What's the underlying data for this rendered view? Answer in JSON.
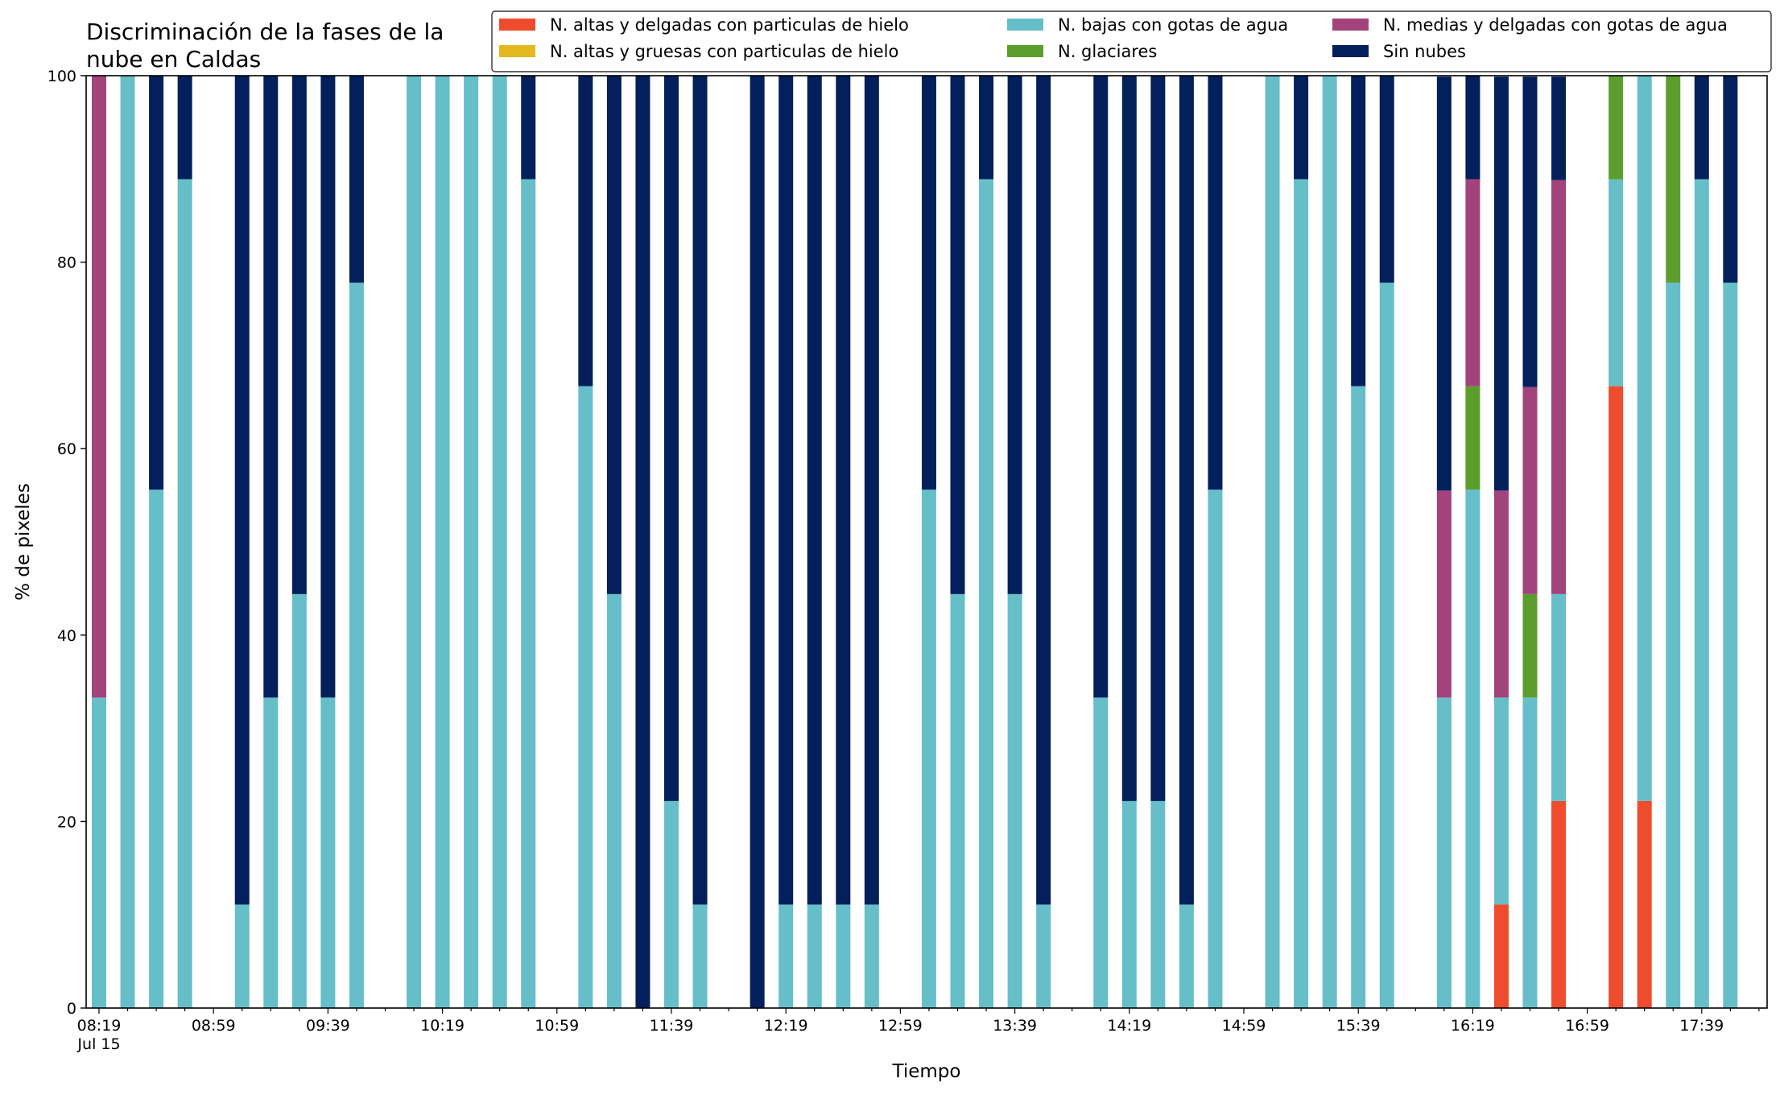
{
  "chart_data": {
    "type": "bar",
    "stacked": true,
    "title": "Discriminación de la fases de la\nnube en Caldas",
    "xlabel": "Tiempo",
    "ylabel": "% de pixeles",
    "ylim": [
      0,
      100
    ],
    "yticks": [
      0,
      20,
      40,
      60,
      80,
      100
    ],
    "grid": false,
    "legend_position": "top-right",
    "legend_columns": 3,
    "x_tick_labels": [
      {
        "slot": 0,
        "label": "08:19",
        "sublabel": "Jul 15"
      },
      {
        "slot": 4,
        "label": "08:59"
      },
      {
        "slot": 8,
        "label": "09:39"
      },
      {
        "slot": 12,
        "label": "10:19"
      },
      {
        "slot": 16,
        "label": "10:59"
      },
      {
        "slot": 20,
        "label": "11:39"
      },
      {
        "slot": 24,
        "label": "12:19"
      },
      {
        "slot": 28,
        "label": "12:59"
      },
      {
        "slot": 32,
        "label": "13:39"
      },
      {
        "slot": 36,
        "label": "14:19"
      },
      {
        "slot": 40,
        "label": "14:59"
      },
      {
        "slot": 44,
        "label": "15:39"
      },
      {
        "slot": 48,
        "label": "16:19"
      },
      {
        "slot": 52,
        "label": "16:59"
      },
      {
        "slot": 56,
        "label": "17:39"
      }
    ],
    "x_slot_count": 59,
    "series": [
      {
        "name": "N. altas y delgadas con particulas de hielo",
        "color": "#EE4C2C"
      },
      {
        "name": "N. altas y gruesas con particulas de hielo",
        "color": "#E3B91E"
      },
      {
        "name": "N. bajas con gotas de agua",
        "color": "#66BFC8"
      },
      {
        "name": "N. glaciares",
        "color": "#5B9E2E"
      },
      {
        "name": "N. medias y delgadas con gotas de agua",
        "color": "#A2437B"
      },
      {
        "name": "Sin nubes",
        "color": "#031F5C"
      }
    ],
    "bars": [
      {
        "slot": 0,
        "values": [
          0,
          0,
          33.3,
          0,
          66.7,
          0
        ]
      },
      {
        "slot": 1,
        "values": [
          0,
          0,
          100,
          0,
          0,
          0
        ]
      },
      {
        "slot": 2,
        "values": [
          0,
          0,
          55.6,
          0,
          0,
          44.4
        ]
      },
      {
        "slot": 3,
        "values": [
          0,
          0,
          88.9,
          0,
          0,
          11.1
        ]
      },
      {
        "slot": 5,
        "values": [
          0,
          0,
          11.1,
          0,
          0,
          88.9
        ]
      },
      {
        "slot": 6,
        "values": [
          0,
          0,
          33.3,
          0,
          0,
          66.7
        ]
      },
      {
        "slot": 7,
        "values": [
          0,
          0,
          44.4,
          0,
          0,
          55.6
        ]
      },
      {
        "slot": 8,
        "values": [
          0,
          0,
          33.3,
          0,
          0,
          66.7
        ]
      },
      {
        "slot": 9,
        "values": [
          0,
          0,
          77.8,
          0,
          0,
          22.2
        ]
      },
      {
        "slot": 11,
        "values": [
          0,
          0,
          100,
          0,
          0,
          0
        ]
      },
      {
        "slot": 12,
        "values": [
          0,
          0,
          100,
          0,
          0,
          0
        ]
      },
      {
        "slot": 13,
        "values": [
          0,
          0,
          100,
          0,
          0,
          0
        ]
      },
      {
        "slot": 14,
        "values": [
          0,
          0,
          100,
          0,
          0,
          0
        ]
      },
      {
        "slot": 15,
        "values": [
          0,
          0,
          88.9,
          0,
          0,
          11.1
        ]
      },
      {
        "slot": 17,
        "values": [
          0,
          0,
          66.7,
          0,
          0,
          33.3
        ]
      },
      {
        "slot": 18,
        "values": [
          0,
          0,
          44.4,
          0,
          0,
          55.6
        ]
      },
      {
        "slot": 19,
        "values": [
          0,
          0,
          0,
          0,
          0,
          100
        ]
      },
      {
        "slot": 20,
        "values": [
          0,
          0,
          22.2,
          0,
          0,
          77.8
        ]
      },
      {
        "slot": 21,
        "values": [
          0,
          0,
          11.1,
          0,
          0,
          88.9
        ]
      },
      {
        "slot": 23,
        "values": [
          0,
          0,
          0,
          0,
          0,
          100
        ]
      },
      {
        "slot": 24,
        "values": [
          0,
          0,
          11.1,
          0,
          0,
          88.9
        ]
      },
      {
        "slot": 25,
        "values": [
          0,
          0,
          11.1,
          0,
          0,
          88.9
        ]
      },
      {
        "slot": 26,
        "values": [
          0,
          0,
          11.1,
          0,
          0,
          88.9
        ]
      },
      {
        "slot": 27,
        "values": [
          0,
          0,
          11.1,
          0,
          0,
          88.9
        ]
      },
      {
        "slot": 29,
        "values": [
          0,
          0,
          55.6,
          0,
          0,
          44.4
        ]
      },
      {
        "slot": 30,
        "values": [
          0,
          0,
          44.4,
          0,
          0,
          55.6
        ]
      },
      {
        "slot": 31,
        "values": [
          0,
          0,
          88.9,
          0,
          0,
          11.1
        ]
      },
      {
        "slot": 32,
        "values": [
          0,
          0,
          44.4,
          0,
          0,
          55.6
        ]
      },
      {
        "slot": 33,
        "values": [
          0,
          0,
          11.1,
          0,
          0,
          88.9
        ]
      },
      {
        "slot": 35,
        "values": [
          0,
          0,
          33.3,
          0,
          0,
          66.7
        ]
      },
      {
        "slot": 36,
        "values": [
          0,
          0,
          22.2,
          0,
          0,
          77.8
        ]
      },
      {
        "slot": 37,
        "values": [
          0,
          0,
          22.2,
          0,
          0,
          77.8
        ]
      },
      {
        "slot": 38,
        "values": [
          0,
          0,
          11.1,
          0,
          0,
          88.9
        ]
      },
      {
        "slot": 39,
        "values": [
          0,
          0,
          55.6,
          0,
          0,
          44.4
        ]
      },
      {
        "slot": 41,
        "values": [
          0,
          0,
          100,
          0,
          0,
          0
        ]
      },
      {
        "slot": 42,
        "values": [
          0,
          0,
          88.9,
          0,
          0,
          11.1
        ]
      },
      {
        "slot": 43,
        "values": [
          0,
          0,
          100,
          0,
          0,
          0
        ]
      },
      {
        "slot": 44,
        "values": [
          0,
          0,
          66.7,
          0,
          0,
          33.3
        ]
      },
      {
        "slot": 45,
        "values": [
          0,
          0,
          77.8,
          0,
          0,
          22.2
        ]
      },
      {
        "slot": 47,
        "values": [
          0,
          0,
          33.3,
          0,
          22.2,
          44.4
        ]
      },
      {
        "slot": 48,
        "values": [
          0,
          0,
          55.6,
          11.1,
          22.2,
          11.1
        ]
      },
      {
        "slot": 49,
        "values": [
          11.1,
          0,
          22.2,
          0,
          22.2,
          44.4
        ]
      },
      {
        "slot": 50,
        "values": [
          0,
          0,
          33.3,
          11.1,
          22.2,
          33.3
        ]
      },
      {
        "slot": 51,
        "values": [
          22.2,
          0,
          22.2,
          0,
          44.4,
          11.1
        ]
      },
      {
        "slot": 53,
        "values": [
          66.7,
          0,
          22.2,
          11.1,
          0,
          0
        ]
      },
      {
        "slot": 54,
        "values": [
          22.2,
          0,
          77.8,
          0,
          0,
          0
        ]
      },
      {
        "slot": 55,
        "values": [
          0,
          0,
          77.8,
          22.2,
          0,
          0
        ]
      },
      {
        "slot": 56,
        "values": [
          0,
          0,
          88.9,
          0,
          0,
          11.1
        ]
      },
      {
        "slot": 57,
        "values": [
          0,
          0,
          77.8,
          0,
          0,
          22.2
        ]
      }
    ]
  }
}
